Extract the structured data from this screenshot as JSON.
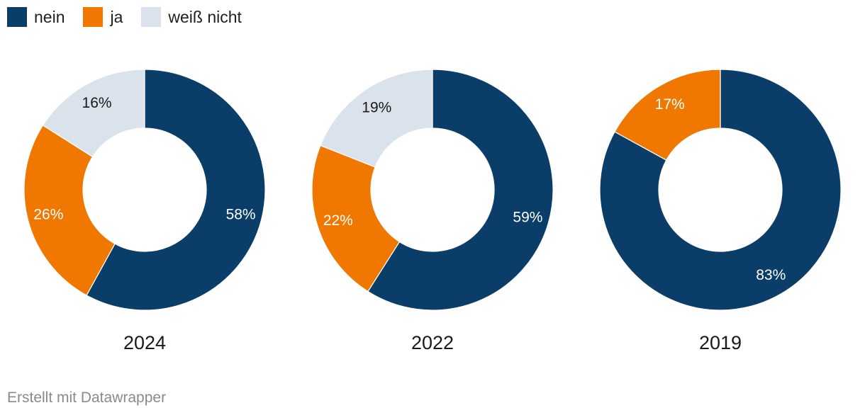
{
  "legend": [
    {
      "label": "nein",
      "color": "#0a3e68"
    },
    {
      "label": "ja",
      "color": "#f07800"
    },
    {
      "label": "weiß nicht",
      "color": "#dae3ec"
    }
  ],
  "chart_data": [
    {
      "type": "pie",
      "subtype": "donut",
      "title": "2024",
      "categories": [
        "nein",
        "ja",
        "weiß nicht"
      ],
      "values": [
        58,
        26,
        16
      ],
      "labels": [
        "58%",
        "26%",
        "16%"
      ],
      "colors": [
        "#0a3e68",
        "#f07800",
        "#dae3ec"
      ]
    },
    {
      "type": "pie",
      "subtype": "donut",
      "title": "2022",
      "categories": [
        "nein",
        "ja",
        "weiß nicht"
      ],
      "values": [
        59,
        22,
        19
      ],
      "labels": [
        "59%",
        "22%",
        "19%"
      ],
      "colors": [
        "#0a3e68",
        "#f07800",
        "#dae3ec"
      ]
    },
    {
      "type": "pie",
      "subtype": "donut",
      "title": "2019",
      "categories": [
        "nein",
        "ja",
        "weiß nicht"
      ],
      "values": [
        83,
        17,
        0
      ],
      "labels": [
        "83%",
        "17%",
        ""
      ],
      "colors": [
        "#0a3e68",
        "#f07800",
        "#dae3ec"
      ]
    }
  ],
  "footer": {
    "credit": "Erstellt mit Datawrapper"
  }
}
